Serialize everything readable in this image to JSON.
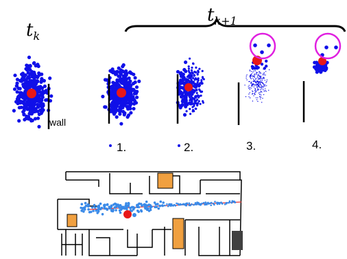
{
  "labels": {
    "t_k": "t",
    "t_k_sub": "k",
    "t_k1": "t",
    "t_k1_sub": "k+1",
    "wall": "wall",
    "step1": "1.",
    "step2": "2.",
    "step3": "3.",
    "step4": "4."
  },
  "colors": {
    "particle": "#1010e8",
    "estimate": "#e81818",
    "highlight": "#e020e0",
    "wall": "#000000",
    "room_fill": "#f0a040",
    "trajectory": "#3a8ae8",
    "path_line": "#e83030"
  }
}
